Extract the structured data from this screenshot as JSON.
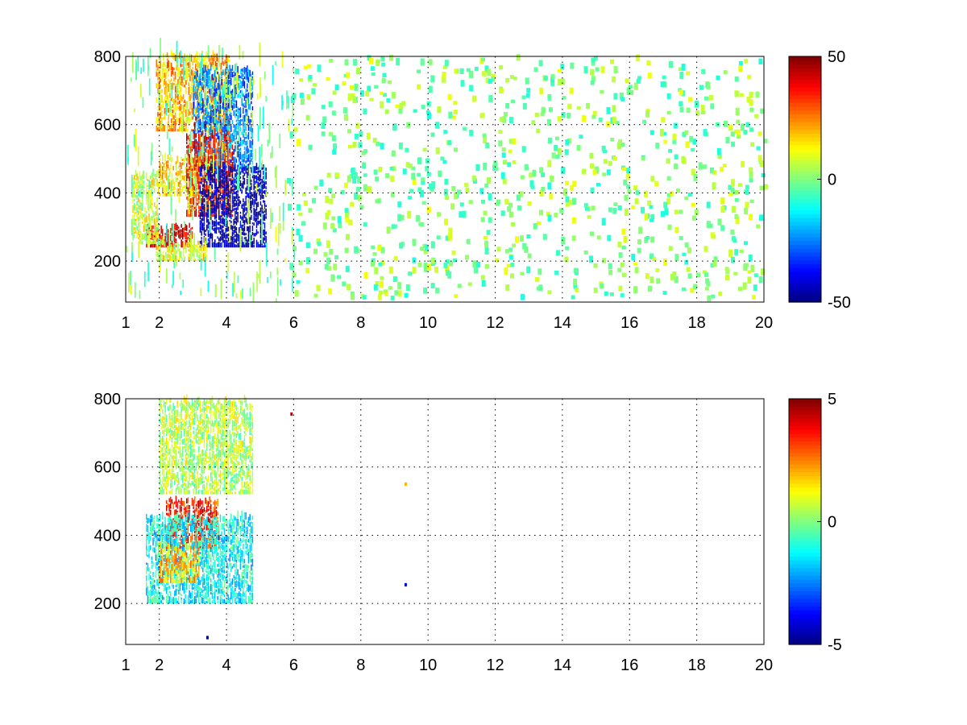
{
  "chart_data": [
    {
      "type": "heatmap",
      "title": "",
      "xlabel": "",
      "ylabel": "",
      "xlim": [
        1,
        20
      ],
      "ylim": [
        80,
        800
      ],
      "grid": true,
      "xticks": [
        1,
        2,
        4,
        6,
        8,
        10,
        12,
        14,
        16,
        18,
        20
      ],
      "yticks": [
        200,
        400,
        600,
        800
      ],
      "colorbar": {
        "ticks": [
          -50,
          0,
          50
        ],
        "clim": [
          -50,
          50
        ],
        "colormap": "jet"
      },
      "blobs": [
        {
          "x": [
            1.9,
            4.1
          ],
          "y": [
            580,
            800
          ],
          "value": 20
        },
        {
          "x": [
            3.0,
            4.8
          ],
          "y": [
            470,
            760
          ],
          "value": -25
        },
        {
          "x": [
            2.0,
            3.5
          ],
          "y": [
            390,
            500
          ],
          "value": 15
        },
        {
          "x": [
            2.8,
            4.2
          ],
          "y": [
            330,
            570
          ],
          "value": 35
        },
        {
          "x": [
            1.6,
            3.0
          ],
          "y": [
            240,
            300
          ],
          "value": 42
        },
        {
          "x": [
            3.2,
            5.2
          ],
          "y": [
            240,
            470
          ],
          "value": -45
        },
        {
          "x": [
            1.9,
            3.4
          ],
          "y": [
            200,
            250
          ],
          "value": 10
        },
        {
          "x": [
            1.2,
            2.0
          ],
          "y": [
            250,
            450
          ],
          "value": 8
        }
      ],
      "noise_range": [
        -12,
        12
      ]
    },
    {
      "type": "heatmap",
      "title": "",
      "xlabel": "",
      "ylabel": "",
      "xlim": [
        1,
        20
      ],
      "ylim": [
        80,
        800
      ],
      "grid": true,
      "xticks": [
        1,
        2,
        4,
        6,
        8,
        10,
        12,
        14,
        16,
        18,
        20
      ],
      "yticks": [
        200,
        400,
        600,
        800
      ],
      "colorbar": {
        "ticks": [
          -5,
          0,
          5
        ],
        "clim": [
          -5,
          5
        ],
        "colormap": "jet"
      },
      "blobs": [
        {
          "x": [
            2.0,
            4.8
          ],
          "y": [
            520,
            790
          ],
          "value": 0.5
        },
        {
          "x": [
            2.2,
            3.8
          ],
          "y": [
            360,
            500
          ],
          "value": 3.5
        },
        {
          "x": [
            1.6,
            4.8
          ],
          "y": [
            200,
            450
          ],
          "value": -1.2
        },
        {
          "x": [
            2.0,
            3.2
          ],
          "y": [
            260,
            360
          ],
          "value": 1.8
        }
      ],
      "isolated_points": [
        {
          "x": 9.3,
          "y": 545,
          "value": 2
        },
        {
          "x": 9.3,
          "y": 250,
          "value": -4
        },
        {
          "x": 5.9,
          "y": 750,
          "value": 4.5
        },
        {
          "x": 3.4,
          "y": 95,
          "value": -5
        }
      ]
    }
  ],
  "colors": {
    "frame": "#000000",
    "background": "#ffffff"
  }
}
